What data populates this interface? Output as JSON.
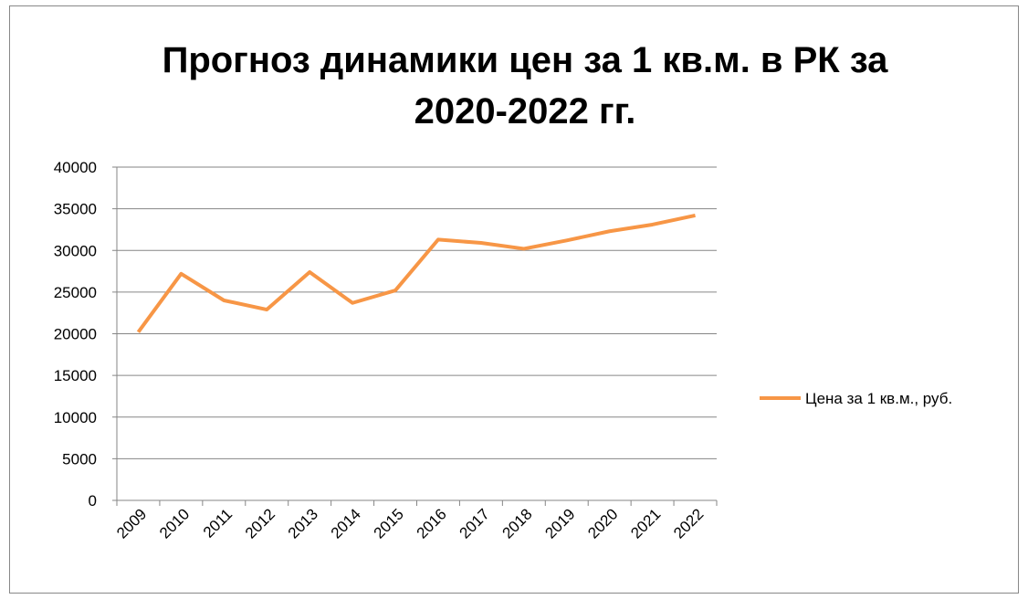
{
  "chart_data": {
    "type": "line",
    "title": "Прогноз динамики цен за 1 кв.м. в РК за 2020-2022 гг.",
    "categories": [
      "2009",
      "2010",
      "2011",
      "2012",
      "2013",
      "2014",
      "2015",
      "2016",
      "2017",
      "2018",
      "2019",
      "2020",
      "2021",
      "2022"
    ],
    "series": [
      {
        "name": "Цена за 1 кв.м., руб.",
        "color": "#f79646",
        "values": [
          20200,
          27200,
          24000,
          22900,
          27400,
          23700,
          25200,
          31300,
          30900,
          30200,
          31200,
          32300,
          33100,
          34200
        ]
      }
    ],
    "ylim": [
      0,
      40000
    ],
    "yticks": [
      0,
      5000,
      10000,
      15000,
      20000,
      25000,
      30000,
      35000,
      40000
    ],
    "grid": true,
    "legend": "right"
  }
}
